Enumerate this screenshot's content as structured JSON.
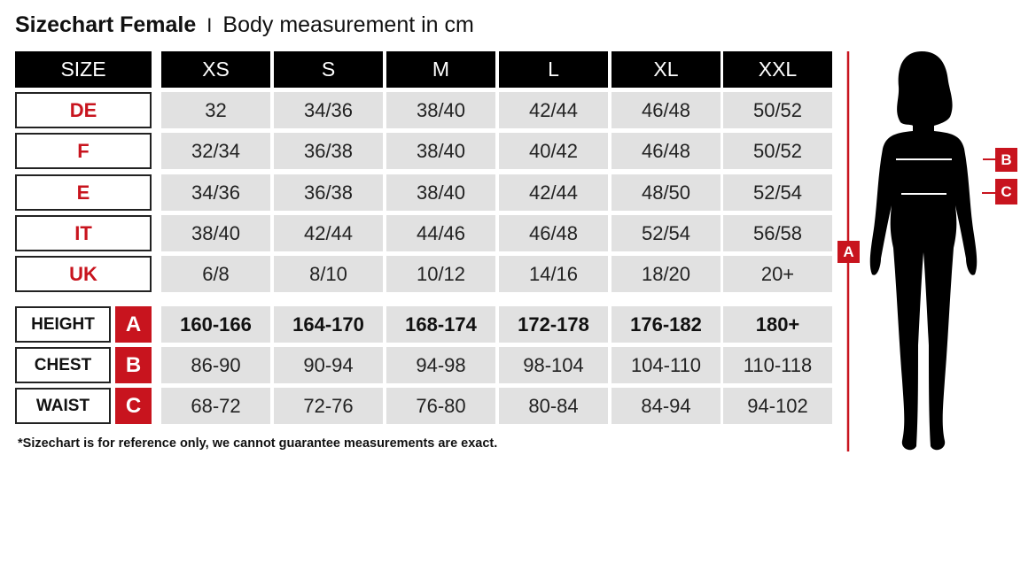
{
  "title": {
    "bold": "Sizechart Female",
    "separator": "I",
    "subtitle": "Body measurement in cm"
  },
  "header": [
    "SIZE",
    "XS",
    "S",
    "M",
    "L",
    "XL",
    "XXL"
  ],
  "size_rows": [
    {
      "label": "DE",
      "values": [
        "32",
        "34/36",
        "38/40",
        "42/44",
        "46/48",
        "50/52"
      ]
    },
    {
      "label": "F",
      "values": [
        "32/34",
        "36/38",
        "38/40",
        "40/42",
        "46/48",
        "50/52"
      ]
    },
    {
      "label": "E",
      "values": [
        "34/36",
        "36/38",
        "38/40",
        "42/44",
        "48/50",
        "52/54"
      ]
    },
    {
      "label": "IT",
      "values": [
        "38/40",
        "42/44",
        "44/46",
        "46/48",
        "52/54",
        "56/58"
      ]
    },
    {
      "label": "UK",
      "values": [
        "6/8",
        "8/10",
        "10/12",
        "14/16",
        "18/20",
        "20+"
      ]
    }
  ],
  "measure_rows": [
    {
      "label": "HEIGHT",
      "letter": "A",
      "values": [
        "160-166",
        "164-170",
        "168-174",
        "172-178",
        "176-182",
        "180+"
      ]
    },
    {
      "label": "CHEST",
      "letter": "B",
      "values": [
        "86-90",
        "90-94",
        "94-98",
        "98-104",
        "104-110",
        "110-118"
      ]
    },
    {
      "label": "WAIST",
      "letter": "C",
      "values": [
        "68-72",
        "72-76",
        "76-80",
        "80-84",
        "84-94",
        "94-102"
      ]
    }
  ],
  "footnote": "*Sizechart is for reference only, we cannot guarantee measurements are exact.",
  "figure": {
    "height_marker": "A",
    "chest_marker": "B",
    "waist_marker": "C"
  },
  "colors": {
    "accent": "#c8141e",
    "header_bg": "#000000",
    "cell_bg": "#e1e1e1"
  }
}
